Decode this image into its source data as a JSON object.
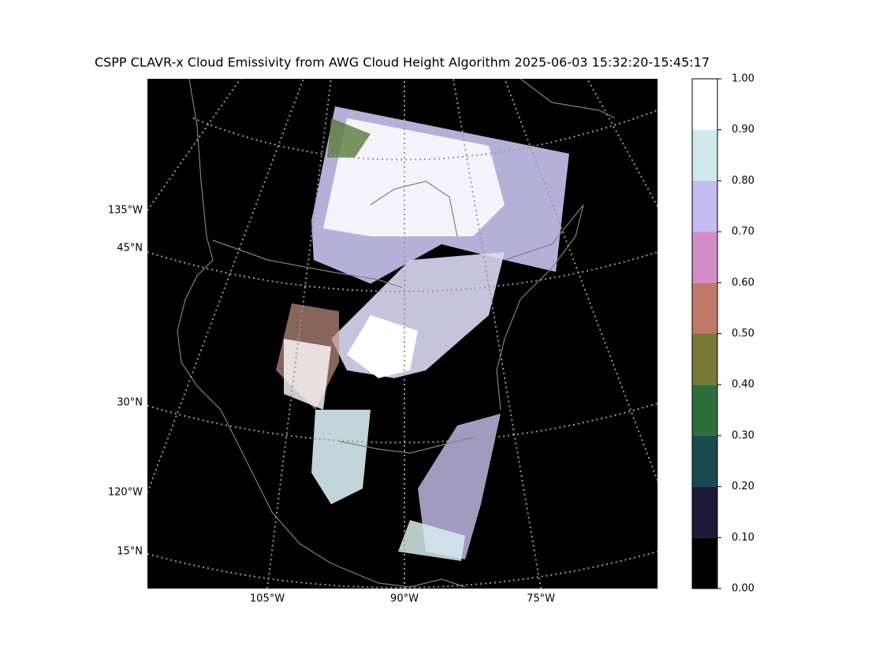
{
  "title": "CSPP CLAVR-x Cloud Emissivity from AWG Cloud Height Algorithm 2025-06-03 15:32:20-15:45:17",
  "map": {
    "left_labels": [
      "135°W",
      "45°N",
      "30°N",
      "120°W",
      "15°N"
    ],
    "bottom_labels": [
      "105°W",
      "90°W",
      "75°W"
    ]
  },
  "colorbar": {
    "ticks": [
      {
        "value": 0,
        "label": "0.00"
      },
      {
        "value": 0.1,
        "label": "0.10"
      },
      {
        "value": 0.2,
        "label": "0.20"
      },
      {
        "value": 0.3,
        "label": "0.30"
      },
      {
        "value": 0.4,
        "label": "0.40"
      },
      {
        "value": 0.5,
        "label": "0.50"
      },
      {
        "value": 0.6,
        "label": "0.60"
      },
      {
        "value": 0.7,
        "label": "0.70"
      },
      {
        "value": 0.8,
        "label": "0.80"
      },
      {
        "value": 0.9,
        "label": "0.90"
      },
      {
        "value": 1,
        "label": "1.00"
      }
    ],
    "colors": [
      "#000000",
      "#1e1a3a",
      "#1a4a50",
      "#2e6e3a",
      "#7a7a38",
      "#c07868",
      "#d48cc8",
      "#c3bcf0",
      "#cde9ec",
      "#ffffff"
    ]
  }
}
